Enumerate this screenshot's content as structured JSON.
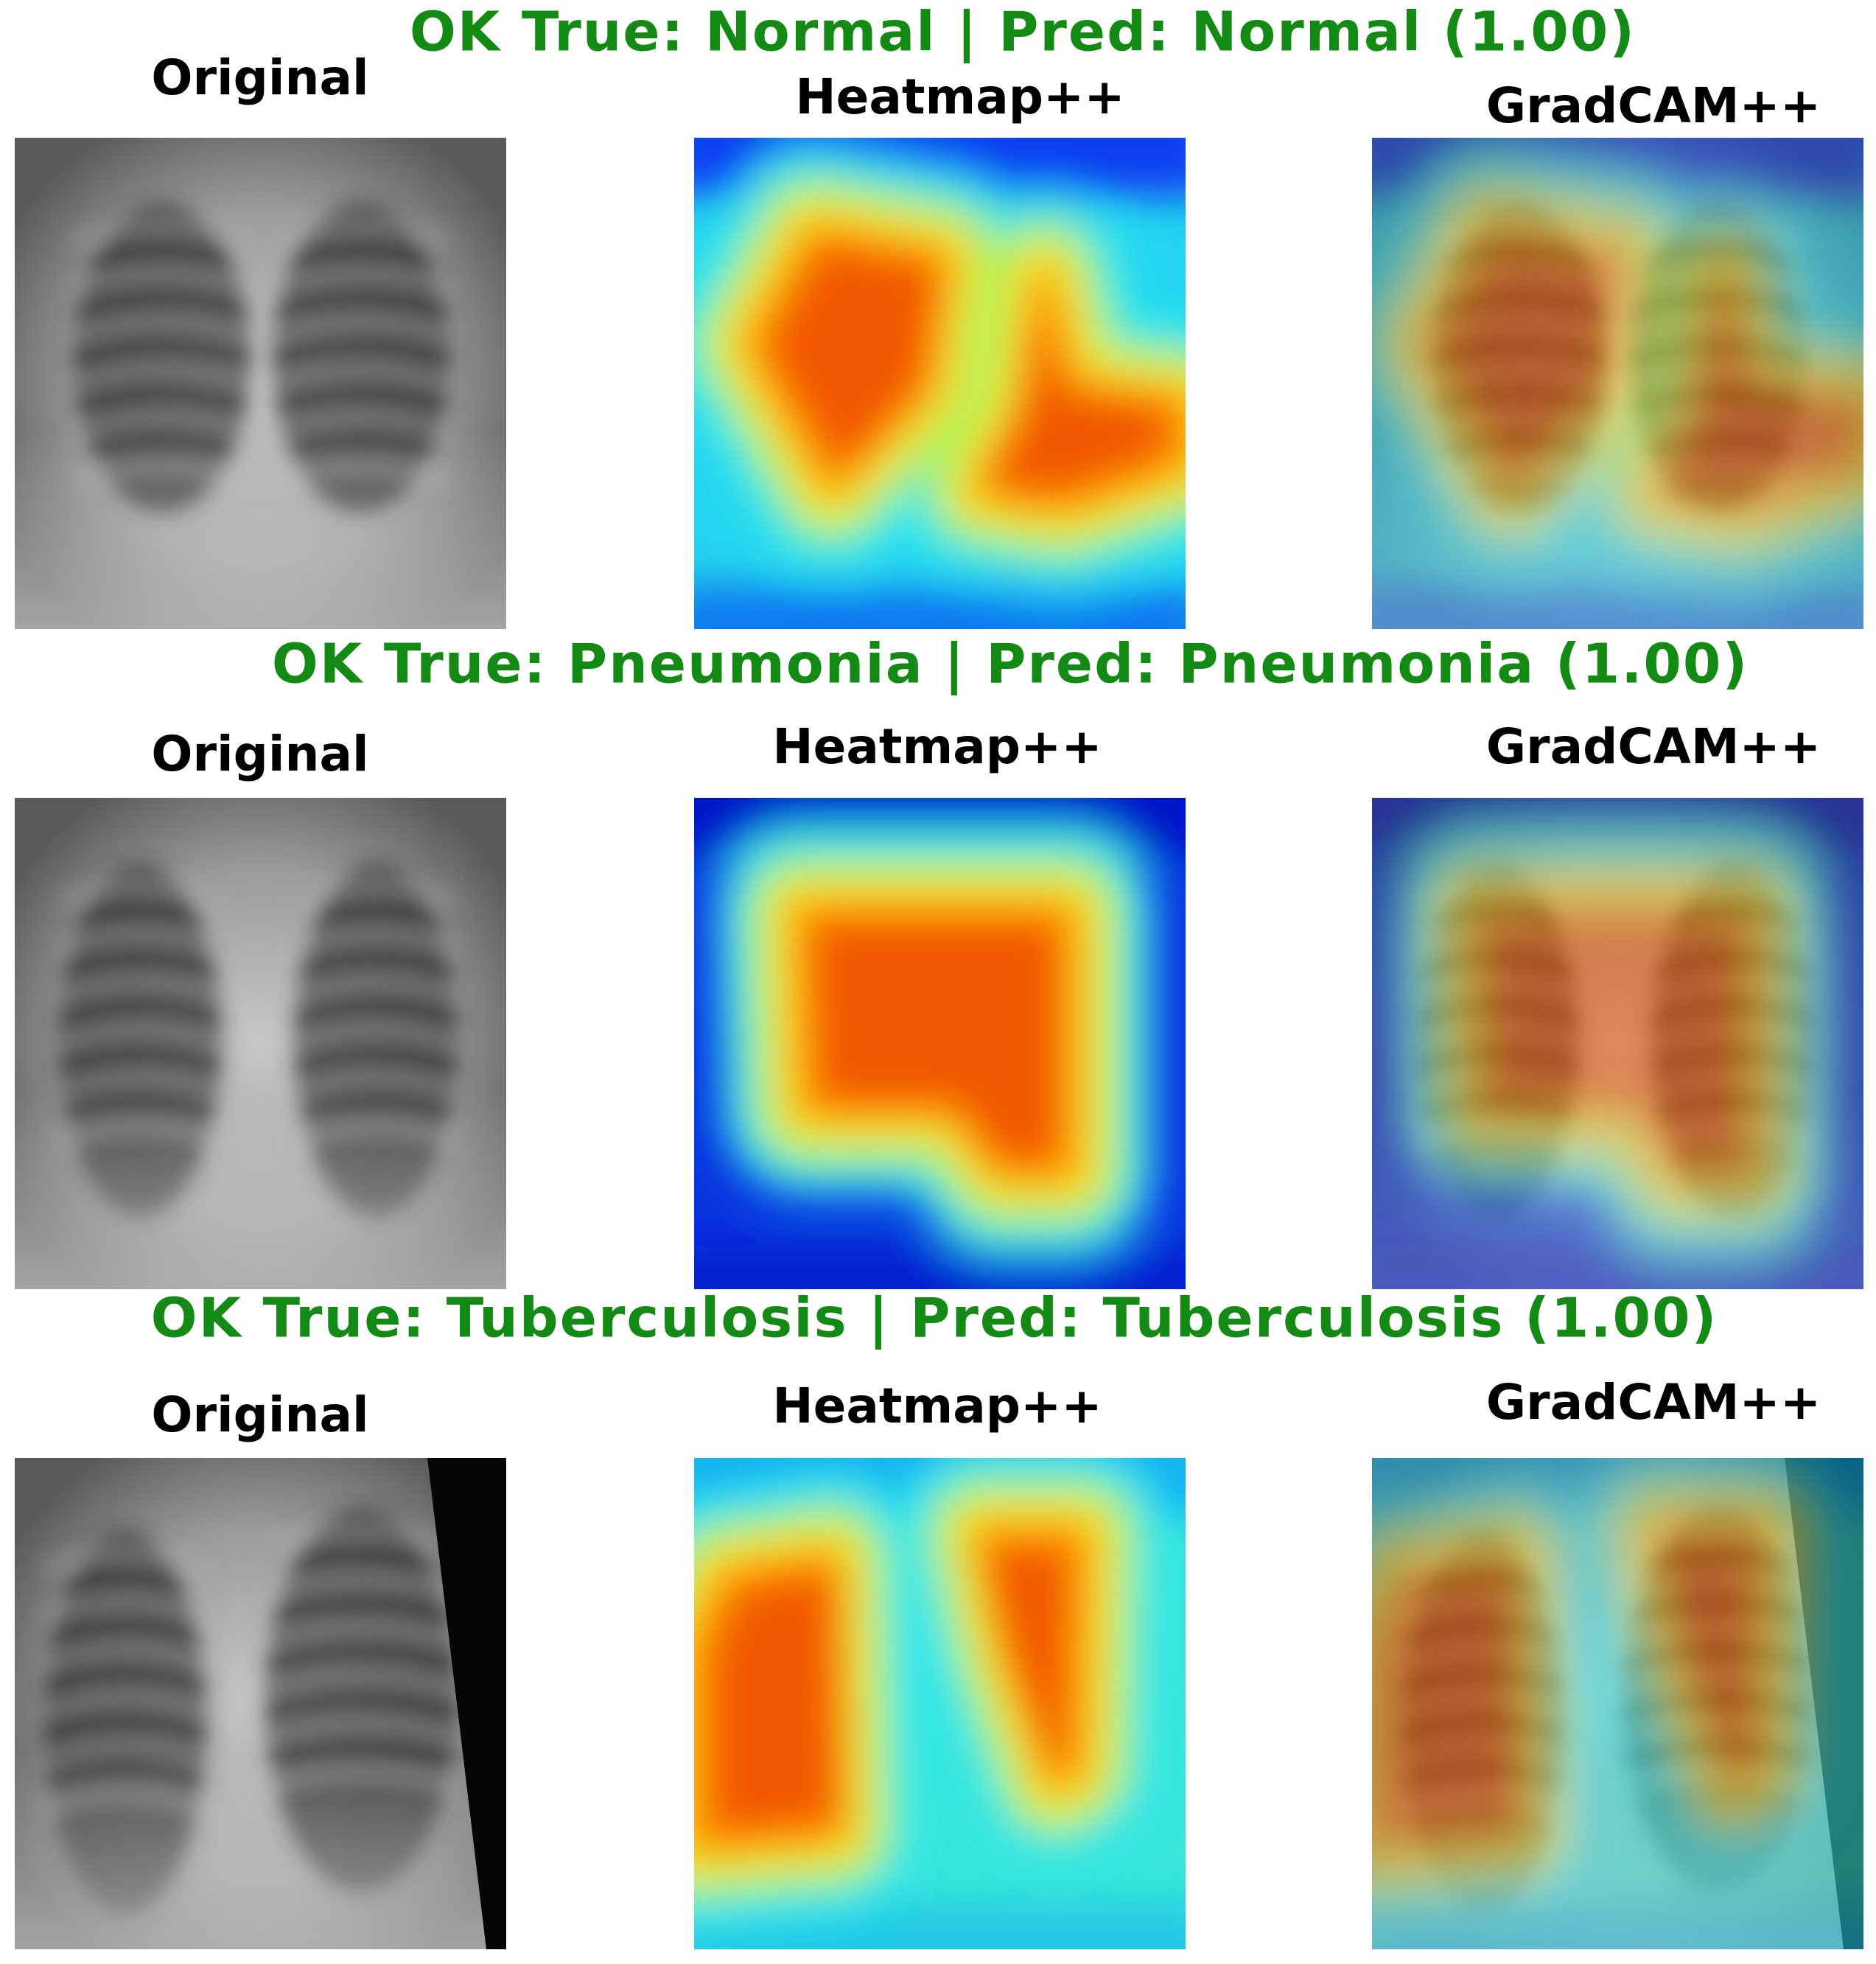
{
  "rows": [
    {
      "title": "OK True: Normal | Pred: Normal (1.00)",
      "panels": [
        "Original",
        "Heatmap++",
        "GradCAM++"
      ]
    },
    {
      "title": "OK True: Pneumonia | Pred: Pneumonia (1.00)",
      "panels": [
        "Original",
        "Heatmap++",
        "GradCAM++"
      ]
    },
    {
      "title": "OK True: Tuberculosis | Pred: Tuberculosis (1.00)",
      "panels": [
        "Original",
        "Heatmap++",
        "GradCAM++"
      ]
    }
  ]
}
